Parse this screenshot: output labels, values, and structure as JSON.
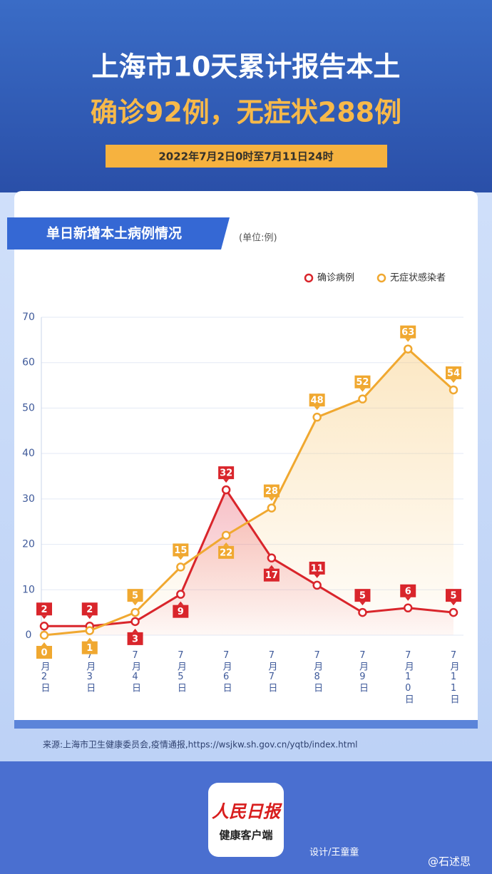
{
  "header": {
    "line1": "上海市10天累计报告本土",
    "line2": "确诊92例，无症状288例",
    "date": "2022年7月2日0时至7月11日24时"
  },
  "chart_data": {
    "type": "line",
    "title": "单日新增本土病例情况",
    "unit": "(单位:例)",
    "categories": [
      "7月2日",
      "7月3日",
      "7月4日",
      "7月5日",
      "7月6日",
      "7月7日",
      "7月8日",
      "7月9日",
      "7月10日",
      "7月11日"
    ],
    "series": [
      {
        "name": "确诊病例",
        "color": "#d9252b",
        "values": [
          2,
          2,
          3,
          9,
          32,
          17,
          11,
          5,
          6,
          5
        ]
      },
      {
        "name": "无症状感染者",
        "color": "#f0a830",
        "values": [
          0,
          1,
          5,
          15,
          22,
          28,
          48,
          52,
          63,
          54
        ]
      }
    ],
    "ylim": [
      0,
      70
    ],
    "yticks": [
      0,
      10,
      20,
      30,
      40,
      50,
      60,
      70
    ],
    "grid": true,
    "legend": "top-right"
  },
  "footer": {
    "source": "来源:上海市卫生健康委员会,疫情通报,https://wsjkw.sh.gov.cn/yqtb/index.html",
    "logo": "人民日报",
    "logo_sub": "健康客户端",
    "designer": "设计/王童童",
    "watermark": "@石述思"
  }
}
